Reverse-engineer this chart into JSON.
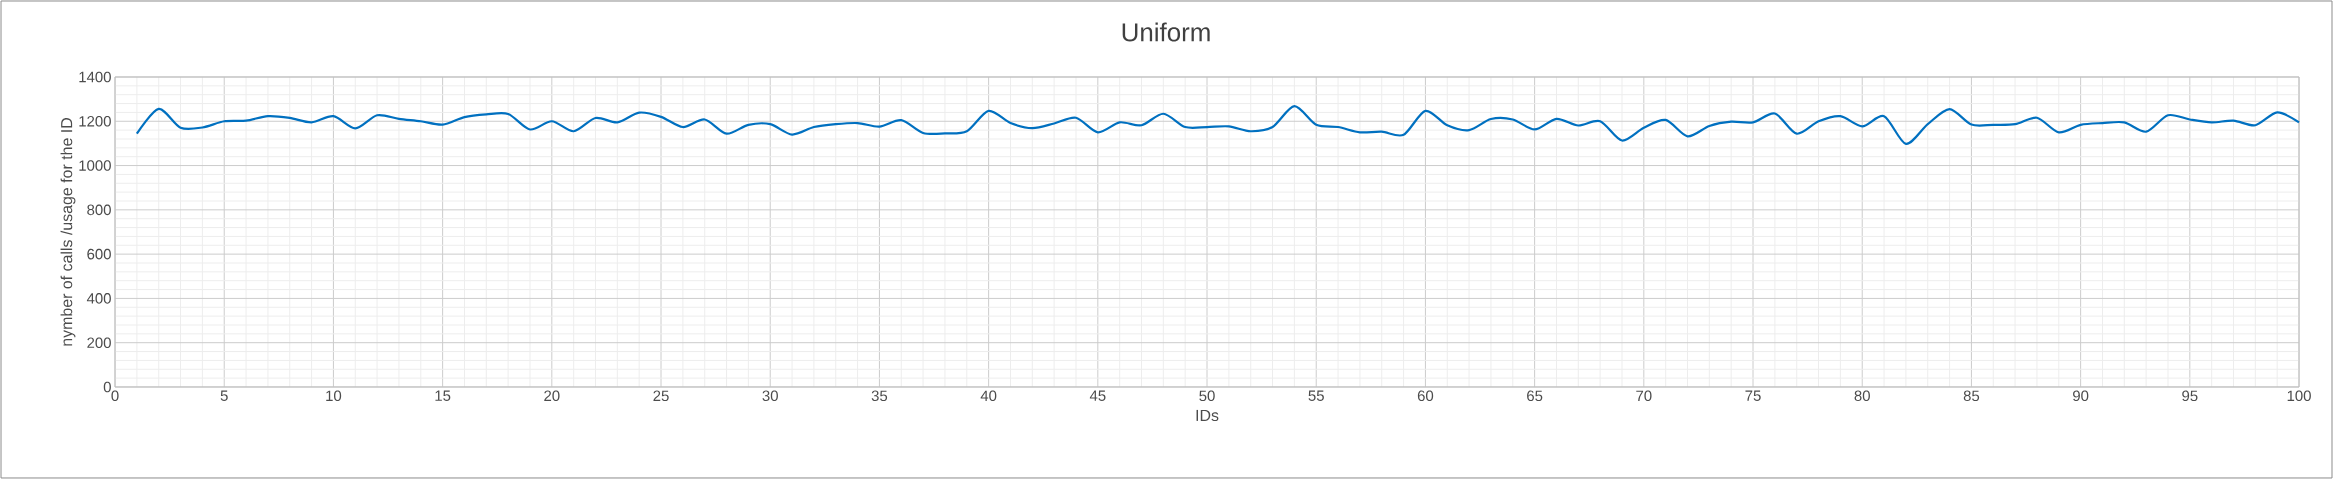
{
  "chart_data": {
    "type": "line",
    "title": "Uniform",
    "xlabel": "IDs",
    "ylabel": "nymber of calls /usage for the ID",
    "x": [
      1,
      2,
      3,
      4,
      5,
      6,
      7,
      8,
      9,
      10,
      11,
      12,
      13,
      14,
      15,
      16,
      17,
      18,
      19,
      20,
      21,
      22,
      23,
      24,
      25,
      26,
      27,
      28,
      29,
      30,
      31,
      32,
      33,
      34,
      35,
      36,
      37,
      38,
      39,
      40,
      41,
      42,
      43,
      44,
      45,
      46,
      47,
      48,
      49,
      50,
      51,
      52,
      53,
      54,
      55,
      56,
      57,
      58,
      59,
      60,
      61,
      62,
      63,
      64,
      65,
      66,
      67,
      68,
      69,
      70,
      71,
      72,
      73,
      74,
      75,
      76,
      77,
      78,
      79,
      80,
      81,
      82,
      83,
      84,
      85,
      86,
      87,
      88,
      89,
      90,
      91,
      92,
      93,
      94,
      95,
      96,
      97,
      98,
      99,
      100
    ],
    "series": [
      {
        "color": "#0070c0",
        "values": [
          1144,
          1256,
          1171,
          1172,
          1200,
          1203,
          1223,
          1215,
          1195,
          1223,
          1168,
          1227,
          1211,
          1200,
          1185,
          1219,
          1231,
          1233,
          1163,
          1200,
          1155,
          1215,
          1195,
          1239,
          1220,
          1174,
          1208,
          1144,
          1184,
          1187,
          1140,
          1174,
          1187,
          1192,
          1176,
          1205,
          1147,
          1145,
          1155,
          1247,
          1192,
          1169,
          1190,
          1216,
          1150,
          1195,
          1182,
          1234,
          1174,
          1174,
          1177,
          1155,
          1174,
          1268,
          1184,
          1174,
          1150,
          1153,
          1139,
          1247,
          1182,
          1160,
          1210,
          1208,
          1163,
          1211,
          1181,
          1200,
          1113,
          1171,
          1206,
          1132,
          1179,
          1198,
          1195,
          1235,
          1144,
          1200,
          1223,
          1177,
          1223,
          1098,
          1187,
          1255,
          1185,
          1184,
          1187,
          1216,
          1150,
          1184,
          1192,
          1195,
          1153,
          1227,
          1208,
          1195,
          1203,
          1182,
          1240,
          1195
        ]
      }
    ],
    "xlim": [
      0,
      100
    ],
    "xticks": [
      0,
      5,
      10,
      15,
      20,
      25,
      30,
      35,
      40,
      45,
      50,
      55,
      60,
      65,
      70,
      75,
      80,
      85,
      90,
      95,
      100
    ],
    "ylim": [
      0,
      1400
    ],
    "yticks": [
      0,
      200,
      400,
      600,
      800,
      1000,
      1200,
      1400
    ],
    "grid": true,
    "marker": "none",
    "line_style": "solid"
  }
}
